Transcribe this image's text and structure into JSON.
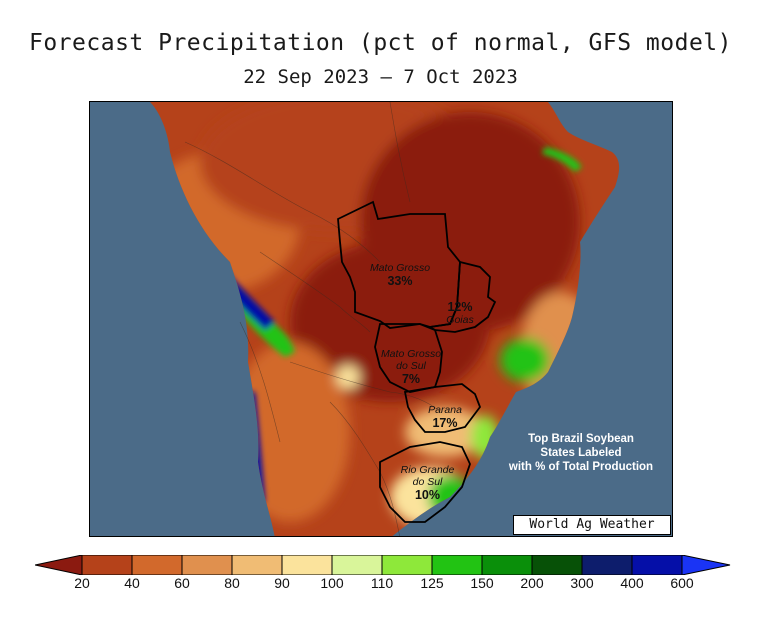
{
  "title": "Forecast Precipitation (pct of normal, GFS model)",
  "subtitle": "22 Sep 2023 — 7 Oct 2023",
  "credit": "World Ag Weather",
  "note": {
    "line1": "Top Brazil Soybean",
    "line2": "States Labeled",
    "line3": "with % of Total Production"
  },
  "states": [
    {
      "name": "Mato Grosso",
      "pct": "33%"
    },
    {
      "name": "Goias",
      "pct": "12%"
    },
    {
      "name": "Mato Grosso do Sul",
      "name_line1": "Mato Grosso",
      "name_line2": "do Sul",
      "pct": "7%"
    },
    {
      "name": "Parana",
      "pct": "17%"
    },
    {
      "name": "Rio Grande do Sul",
      "name_line1": "Rio Grande",
      "name_line2": "do Sul",
      "pct": "10%"
    }
  ],
  "legend": {
    "ticks": [
      "20",
      "40",
      "60",
      "80",
      "90",
      "100",
      "110",
      "125",
      "150",
      "200",
      "300",
      "400",
      "600"
    ],
    "colors": [
      "#8b1a10",
      "#b5421a",
      "#d2692c",
      "#e0904e",
      "#f0bc74",
      "#fbe39c",
      "#d9f59a",
      "#8ee83a",
      "#22c313",
      "#0a8f0a",
      "#075107",
      "#0d1d6c",
      "#050fa8",
      "#1a34f5"
    ],
    "ocean": "#4b6b88"
  }
}
